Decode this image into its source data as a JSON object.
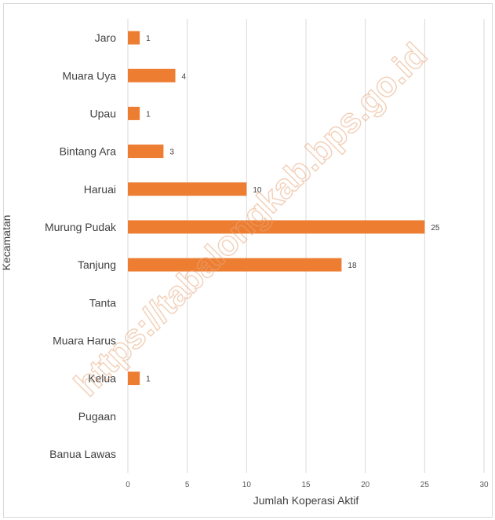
{
  "chart_data": {
    "type": "bar",
    "orientation": "horizontal",
    "categories": [
      "Jaro",
      "Muara Uya",
      "Upau",
      "Bintang Ara",
      "Haruai",
      "Murung Pudak",
      "Tanjung",
      "Tanta",
      "Muara Harus",
      "Kelua",
      "Pugaan",
      "Banua Lawas"
    ],
    "values": [
      1,
      4,
      1,
      3,
      10,
      25,
      18,
      null,
      null,
      1,
      null,
      null
    ],
    "xlabel": "Jumlah Koperasi Aktif",
    "ylabel": "Kecamatan",
    "xlim": [
      0,
      30
    ],
    "xticks": [
      0,
      5,
      10,
      15,
      20,
      25,
      30
    ],
    "grid": "vertical",
    "legend": "none",
    "bar_color": "#ed7d31",
    "watermark": "https://tabalongkab.bps.go.id"
  }
}
